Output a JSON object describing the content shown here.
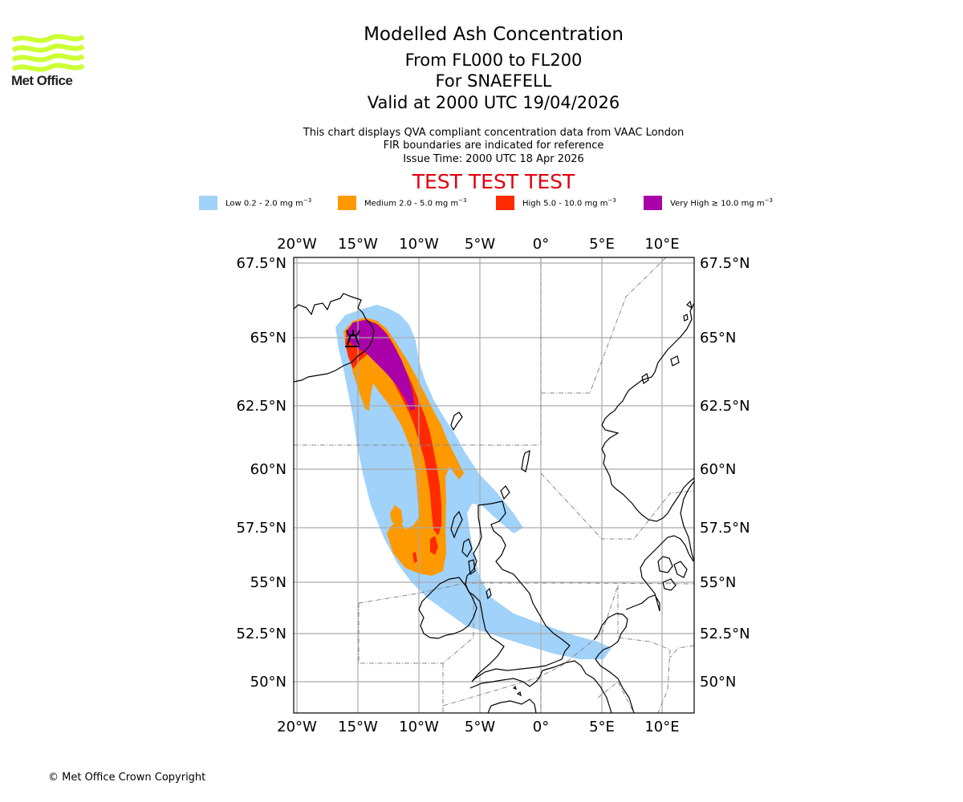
{
  "logo": {
    "icon": "met-office-waves-logo",
    "text": "Met Office",
    "color": "#ccff33"
  },
  "titles": {
    "main": "Modelled Ash Concentration",
    "levels": "From FL000 to FL200",
    "volcano": "For SNAEFELL",
    "valid": "Valid at 2000 UTC 19/04/2026"
  },
  "subtitles": {
    "line1": "This chart displays QVA compliant concentration data from VAAC London",
    "line2": "FIR boundaries are indicated for reference",
    "line3": "Issue Time: 2000 UTC 18 Apr 2026"
  },
  "banner": {
    "text": "TEST TEST TEST",
    "color": "#e3000f"
  },
  "legend": [
    {
      "name": "low",
      "label": "Low 0.2 - 2.0 mg m",
      "unit_exp": "−3",
      "color": "#a0d2fa"
    },
    {
      "name": "medium",
      "label": "Medium 2.0 - 5.0 mg m",
      "unit_exp": "−3",
      "color": "#ff9900"
    },
    {
      "name": "high",
      "label": "High 5.0 - 10.0 mg m",
      "unit_exp": "−3",
      "color": "#ff2a00"
    },
    {
      "name": "very-high",
      "label": "Very High  ≥  10.0 mg m",
      "unit_exp": "−3",
      "color": "#aa00aa"
    }
  ],
  "map": {
    "extent": {
      "lon": [
        -20.3,
        12.7
      ],
      "lat": [
        48.5,
        67.6
      ]
    },
    "volcano_symbol": "volcano-icon",
    "lon_ticks": [
      "20°W",
      "15°W",
      "10°W",
      "5°W",
      "0°",
      "5°E",
      "10°E"
    ],
    "lat_ticks": [
      "67.5°N",
      "65°N",
      "62.5°N",
      "60°N",
      "57.5°N",
      "55°N",
      "52.5°N",
      "50°N"
    ],
    "gridline_color": "#aaaaaa",
    "coast_color": "#000000",
    "fir_color": "#888888"
  },
  "copyright": "© Met Office Crown Copyright"
}
